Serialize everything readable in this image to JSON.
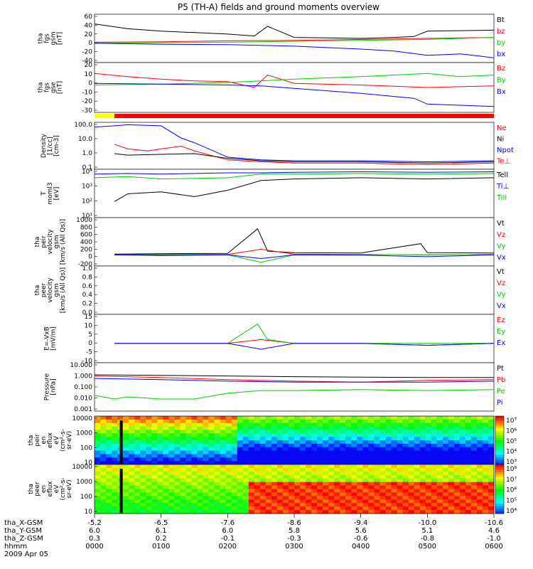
{
  "chart_data": {
    "type": "line",
    "title": "P5 (TH-A) fields and ground moments overview",
    "x_tick_times": [
      "0000",
      "0100",
      "0200",
      "0300",
      "0400",
      "0500",
      "0600"
    ],
    "x_hours": [
      0,
      1,
      2,
      3,
      4,
      5,
      6
    ],
    "orbit_rows": [
      {
        "label": "tha_X-GSM",
        "values": [
          "-5.2",
          "-6.5",
          "-7.6",
          "-8.6",
          "-9.4",
          "-10.0",
          "-10.6"
        ]
      },
      {
        "label": "tha_Y-GSM",
        "values": [
          "6.0",
          "6.1",
          "6.0",
          "5.8",
          "5.6",
          "5.1",
          "4.6"
        ]
      },
      {
        "label": "tha_Z-GSM",
        "values": [
          "0.3",
          "0.2",
          "-0.1",
          "-0.3",
          "-0.6",
          "-0.8",
          "-1.0"
        ]
      },
      {
        "label": "hhmm",
        "values": [
          "0000",
          "0100",
          "0200",
          "0300",
          "0400",
          "0500",
          "0600"
        ]
      }
    ],
    "date": "2009 Apr 05",
    "panels": [
      {
        "id": "fgs_gsm",
        "ylabel": [
          "tha",
          "fgs",
          "gsm",
          "[nT]"
        ],
        "ylim": [
          -40,
          60
        ],
        "yticks": [
          "60",
          "40",
          "20",
          "0",
          "-20",
          "-40"
        ],
        "series": [
          {
            "name": "Bt",
            "color": "#000000",
            "x": [
              0,
              0.5,
              1,
              1.5,
              2,
              2.4,
              2.6,
              3,
              3.5,
              4,
              4.5,
              4.8,
              5,
              5.5,
              6
            ],
            "y": [
              40,
              30,
              25,
              22,
              19,
              15,
              35,
              12,
              11,
              10,
              12,
              14,
              25,
              26,
              27
            ]
          },
          {
            "name": "bz",
            "color": "#ff0000",
            "x": [
              0,
              1,
              2,
              3,
              4,
              5,
              6
            ],
            "y": [
              2,
              3,
              5,
              6,
              8,
              10,
              12
            ]
          },
          {
            "name": "by",
            "color": "#00cc00",
            "x": [
              0,
              1,
              2,
              3,
              4,
              5,
              6
            ],
            "y": [
              0,
              1,
              2,
              4,
              6,
              8,
              12
            ]
          },
          {
            "name": "bx",
            "color": "#0000ff",
            "x": [
              0,
              1,
              2,
              3,
              4,
              4.5,
              5,
              5.5,
              6
            ],
            "y": [
              0,
              -2,
              -3,
              -6,
              -12,
              -16,
              -25,
              -22,
              -30
            ]
          }
        ]
      },
      {
        "id": "fgs_gse",
        "ylabel": [
          "tha",
          "fgs",
          "gse",
          "[nT]"
        ],
        "ylim": [
          -35,
          25
        ],
        "yticks": [
          "20",
          "10",
          "0",
          "-10",
          "-20",
          "-30"
        ],
        "series": [
          {
            "name": "Bz",
            "color": "#ff0000",
            "x": [
              0,
              0.5,
              1,
              1.5,
              2,
              2.4,
              2.6,
              3,
              4,
              5,
              6
            ],
            "y": [
              12,
              8,
              5,
              3,
              2,
              -5,
              10,
              0,
              -2,
              -5,
              -3
            ]
          },
          {
            "name": "By",
            "color": "#00cc00",
            "x": [
              0,
              1,
              2,
              2.5,
              3,
              4,
              5,
              5.5,
              6
            ],
            "y": [
              -2,
              -1,
              1,
              3,
              5,
              8,
              12,
              8,
              10
            ]
          },
          {
            "name": "Bx",
            "color": "#0000ff",
            "x": [
              0,
              1,
              2,
              2.5,
              3,
              4,
              4.8,
              5,
              6
            ],
            "y": [
              0,
              -1,
              -2,
              -3,
              -6,
              -12,
              -18,
              -25,
              -28
            ]
          }
        ]
      },
      {
        "id": "density",
        "ylabel": [
          "Density",
          "[1/cc]",
          "[cm-3]"
        ],
        "log": true,
        "ylim": [
          0.1,
          100
        ],
        "yticks": [
          "100.0",
          "10.0",
          "1.0",
          "0.1"
        ],
        "series": [
          {
            "name": "Ne",
            "color": "#ff0000",
            "x": [
              0.3,
              0.5,
              0.8,
              1,
              1.3,
              1.5,
              2,
              2.5,
              3,
              4,
              5,
              6
            ],
            "y": [
              4,
              2,
              1.5,
              2,
              3,
              1.5,
              0.4,
              0.3,
              0.25,
              0.25,
              0.2,
              0.25
            ]
          },
          {
            "name": "Ni",
            "color": "#000000",
            "x": [
              0.3,
              0.5,
              1,
              1.5,
              2,
              2.5,
              3,
              4,
              5,
              6
            ],
            "y": [
              1,
              0.8,
              0.9,
              1,
              0.5,
              0.35,
              0.3,
              0.3,
              0.25,
              0.3
            ]
          },
          {
            "name": "Npot",
            "color": "#0000ff",
            "x": [
              0,
              0.3,
              0.5,
              1,
              1.3,
              1.5,
              2,
              2.5,
              3,
              4,
              5,
              6
            ],
            "y": [
              50,
              60,
              70,
              60,
              10,
              5,
              0.6,
              0.4,
              0.35,
              0.35,
              0.3,
              0.35
            ]
          },
          {
            "name": "Te⊥",
            "color": "#ff0000",
            "x": [],
            "y": []
          }
        ]
      },
      {
        "id": "temperature",
        "ylabel": [
          "T",
          "moml3",
          "[eV]"
        ],
        "log": true,
        "ylim": [
          10,
          10000
        ],
        "yticks": [
          "10⁴",
          "10³",
          "10²",
          "10¹"
        ],
        "series": [
          {
            "name": "Tell",
            "color": "#000000",
            "x": [
              0.3,
              0.5,
              1,
              1.5,
              2,
              2.5,
              3,
              4,
              5,
              6
            ],
            "y": [
              100,
              300,
              400,
              200,
              500,
              2000,
              2500,
              3000,
              2500,
              3000
            ]
          },
          {
            "name": "Ti⊥",
            "color": "#0000ff",
            "x": [
              0,
              0.5,
              1,
              2,
              2.5,
              3,
              4,
              5,
              6
            ],
            "y": [
              5000,
              5500,
              5000,
              6000,
              6000,
              6500,
              7000,
              6500,
              7000
            ]
          },
          {
            "name": "Till",
            "color": "#00cc00",
            "x": [
              0,
              0.5,
              1,
              2,
              2.5,
              3,
              4,
              5,
              6
            ],
            "y": [
              3000,
              3500,
              2500,
              3000,
              5000,
              5000,
              5500,
              5000,
              5500
            ]
          }
        ]
      },
      {
        "id": "peir_velocity",
        "ylabel": [
          "tha",
          "peir",
          "velocity",
          "gsm",
          "[km/s (All Qs)]"
        ],
        "ylim": [
          -300,
          1000
        ],
        "yticks": [
          "1000",
          "800",
          "600",
          "400",
          "200",
          "0",
          "-200"
        ],
        "series": [
          {
            "name": "Vt",
            "color": "#000000",
            "x": [
              0.3,
              1,
              2,
              2.45,
              2.6,
              3,
              4,
              4.9,
              5,
              6
            ],
            "y": [
              20,
              30,
              40,
              700,
              100,
              60,
              50,
              300,
              60,
              50
            ]
          },
          {
            "name": "Vz",
            "color": "#ff0000",
            "x": [
              0.3,
              1,
              2,
              2.5,
              3,
              4,
              5,
              6
            ],
            "y": [
              0,
              10,
              10,
              150,
              20,
              10,
              0,
              10
            ]
          },
          {
            "name": "Vy",
            "color": "#00cc00",
            "x": [
              0.3,
              1,
              2,
              2.5,
              3,
              4,
              5,
              6
            ],
            "y": [
              0,
              -10,
              0,
              -200,
              0,
              10,
              0,
              10
            ]
          },
          {
            "name": "Vx",
            "color": "#0000ff",
            "x": [
              0.3,
              1,
              2,
              2.5,
              3,
              4,
              5,
              6
            ],
            "y": [
              0,
              -20,
              0,
              -100,
              0,
              -10,
              -50,
              0
            ]
          }
        ]
      },
      {
        "id": "peer_velocity",
        "ylabel": [
          "tha",
          "peer",
          "velocity",
          "gsm",
          "[km/s (All Qs)]"
        ],
        "ylim": [
          0,
          1
        ],
        "yticks": [
          "1.0",
          "0.8",
          "0.6",
          "0.4",
          "0.2",
          "0.0"
        ],
        "series": [
          {
            "name": "Vt",
            "color": "#000000",
            "x": [],
            "y": []
          },
          {
            "name": "Vz",
            "color": "#ff0000",
            "x": [],
            "y": []
          },
          {
            "name": "Vy",
            "color": "#00cc00",
            "x": [],
            "y": []
          },
          {
            "name": "Vx",
            "color": "#0000ff",
            "x": [],
            "y": []
          }
        ]
      },
      {
        "id": "efield",
        "ylabel": [
          "E=-VxB",
          "[mV/m]"
        ],
        "ylim": [
          -10,
          15
        ],
        "yticks": [
          "15",
          "10",
          "5",
          "0",
          "-5",
          "-10"
        ],
        "series": [
          {
            "name": "Ez",
            "color": "#ff0000",
            "x": [
              0.3,
              1,
              2,
              2.5,
              3,
              4,
              5,
              6
            ],
            "y": [
              0,
              0,
              0,
              2,
              0,
              0,
              -1,
              0
            ]
          },
          {
            "name": "Ey",
            "color": "#00cc00",
            "x": [
              0.3,
              1,
              2,
              2.45,
              2.6,
              3,
              4,
              5,
              6
            ],
            "y": [
              0,
              0,
              0,
              10,
              2,
              0,
              0,
              0,
              0
            ]
          },
          {
            "name": "Ex",
            "color": "#0000ff",
            "x": [
              0.3,
              1,
              2,
              2.5,
              3,
              4,
              5,
              6
            ],
            "y": [
              0,
              0,
              0,
              -3,
              0,
              0,
              -1,
              0
            ]
          }
        ]
      },
      {
        "id": "pressure",
        "ylabel": [
          "Pressure",
          "[nPa]"
        ],
        "log": true,
        "ylim": [
          0.001,
          10
        ],
        "yticks": [
          "10.000",
          "1.000",
          "0.100",
          "0.010",
          "0.001"
        ],
        "series": [
          {
            "name": "Pt",
            "color": "#000000",
            "x": [
              0,
              1,
              2,
              3,
              4,
              5,
              6
            ],
            "y": [
              1,
              0.9,
              0.8,
              0.7,
              0.65,
              0.6,
              0.6
            ]
          },
          {
            "name": "Pb",
            "color": "#ff0000",
            "x": [
              0,
              1,
              2,
              3,
              4,
              5,
              6
            ],
            "y": [
              0.8,
              0.6,
              0.4,
              0.3,
              0.25,
              0.35,
              0.4
            ]
          },
          {
            "name": "Pe",
            "color": "#00cc00",
            "x": [
              0,
              0.3,
              0.5,
              1,
              1.5,
              2,
              2.5,
              3,
              4,
              5,
              6
            ],
            "y": [
              0.02,
              0.01,
              0.015,
              0.01,
              0.01,
              0.03,
              0.05,
              0.05,
              0.06,
              0.05,
              0.06
            ]
          },
          {
            "name": "Pi",
            "color": "#0000ff",
            "x": [
              0,
              1,
              2,
              3,
              4,
              5,
              6
            ],
            "y": [
              0.5,
              0.4,
              0.3,
              0.25,
              0.25,
              0.25,
              0.3
            ]
          }
        ]
      },
      {
        "id": "peir_spec",
        "type": "heatmap",
        "ylabel": [
          "tha",
          "peir",
          "en",
          "eflux",
          "eV",
          "(cm²-s-",
          "sr-eV)"
        ],
        "log": true,
        "ylim": [
          10,
          20000
        ],
        "yticks": [
          "10000",
          "1000",
          "100",
          "10"
        ],
        "colorbar": {
          "ticks": [
            "10⁷",
            "10⁶",
            "10⁵",
            "10⁴",
            "10³"
          ]
        }
      },
      {
        "id": "peer_spec",
        "type": "heatmap",
        "ylabel": [
          "tha",
          "peer",
          "en",
          "eflux",
          "eV",
          "(cm²-s-",
          "sr-eV)"
        ],
        "log": true,
        "ylim": [
          10,
          20000
        ],
        "yticks": [
          "10000",
          "1000",
          "100",
          "10"
        ],
        "colorbar": {
          "ticks": [
            "10⁸",
            "10⁷",
            "10⁶",
            "10⁵",
            "10⁴"
          ]
        }
      }
    ]
  }
}
